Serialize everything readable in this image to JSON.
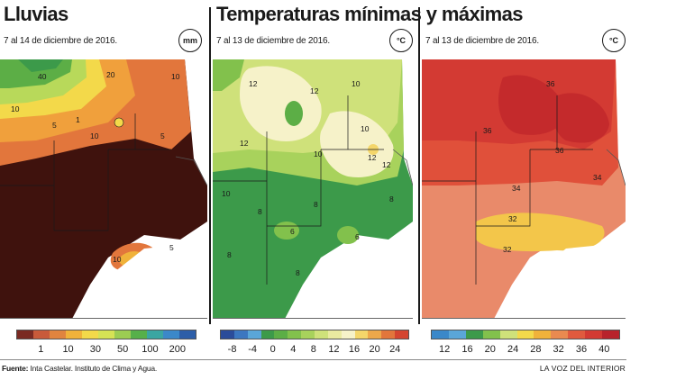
{
  "panels": [
    {
      "id": "lluvias",
      "title": "Lluvias",
      "subtitle": "7 al 14 de diciembre de 2016.",
      "unit": "mm",
      "legend": {
        "colors": [
          "#7a2a22",
          "#c85a3a",
          "#e0843f",
          "#f0b23a",
          "#f3d94a",
          "#d6e255",
          "#9ccc52",
          "#56b04a",
          "#3aa6a2",
          "#3b88c9",
          "#2d5ea8"
        ],
        "ticks": [
          "1",
          "10",
          "30",
          "50",
          "100",
          "200"
        ]
      },
      "map_labels": [
        "40",
        "20",
        "10",
        "5",
        "1",
        "10",
        "5",
        "10",
        "5",
        "10"
      ]
    },
    {
      "id": "minimas",
      "title": "Temperaturas mínimas y máximas",
      "subtitle": "7 al 13 de diciembre de 2016.",
      "unit": "°C",
      "legend": {
        "colors": [
          "#2b4c9a",
          "#3c77c0",
          "#5aa6d8",
          "#3c9a4a",
          "#5cae46",
          "#82c14c",
          "#a8d25c",
          "#cfe17a",
          "#eaeaa0",
          "#f6f2c9",
          "#f4d66a",
          "#eda84a",
          "#e2763c",
          "#d44530"
        ],
        "ticks": [
          "-8",
          "-4",
          "0",
          "4",
          "8",
          "12",
          "16",
          "20",
          "24"
        ]
      },
      "map_labels": [
        "12",
        "12",
        "10",
        "12",
        "10",
        "10",
        "12",
        "10",
        "8",
        "8",
        "6",
        "8",
        "8",
        "6",
        "8",
        "12"
      ]
    },
    {
      "id": "maximas",
      "subtitle": "7 al 13 de diciembre de 2016.",
      "unit": "°C",
      "legend": {
        "colors": [
          "#3b88c9",
          "#5aa6d8",
          "#3c9a4a",
          "#82c14c",
          "#cfe17a",
          "#f3d94a",
          "#f0b23a",
          "#e98a50",
          "#e05a3e",
          "#d33a33",
          "#b8232b"
        ],
        "ticks": [
          "12",
          "16",
          "20",
          "24",
          "28",
          "32",
          "36",
          "40"
        ]
      },
      "map_labels": [
        "36",
        "36",
        "36",
        "34",
        "34",
        "32",
        "32"
      ]
    }
  ],
  "footer": {
    "source_label": "Fuente:",
    "source_text": "Inta Castelar. Instituto de Clima y Agua.",
    "brand": "LA VOZ DEL INTERIOR"
  }
}
